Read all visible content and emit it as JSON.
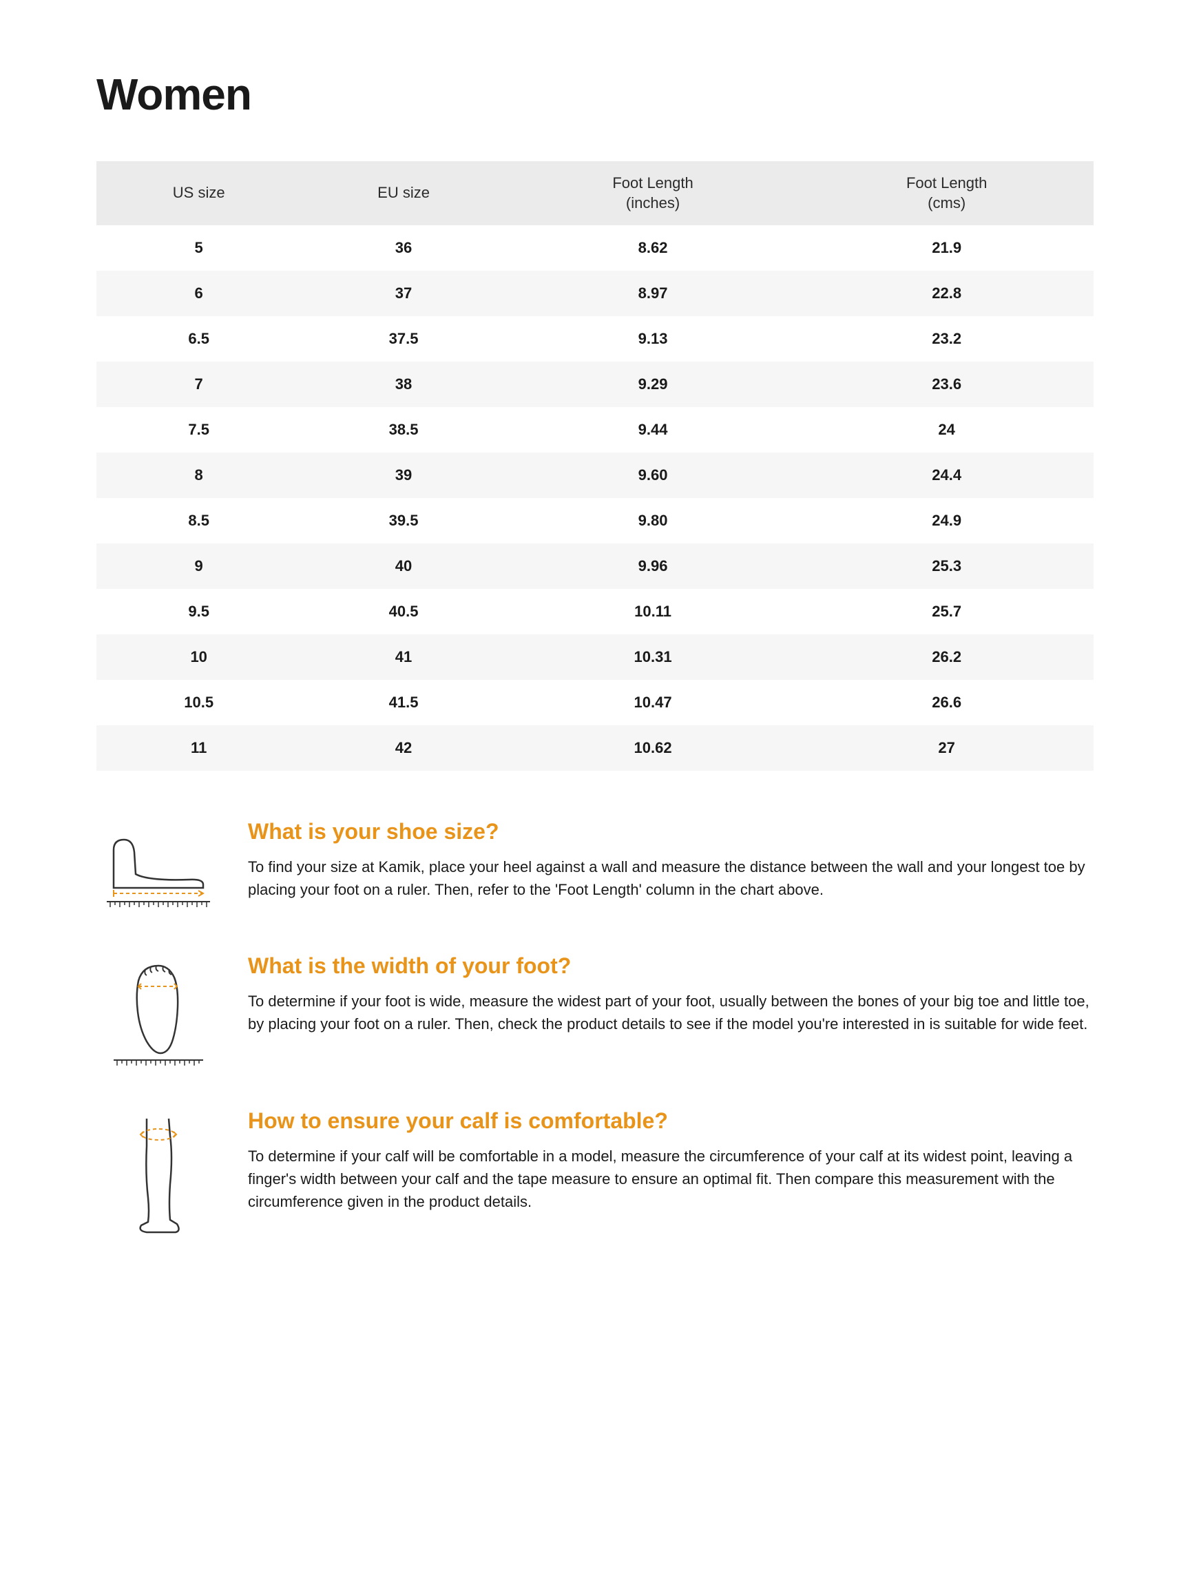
{
  "title": "Women",
  "table": {
    "columns": [
      "US size",
      "EU size",
      "Foot Length\n(inches)",
      "Foot Length\n(cms)"
    ],
    "rows": [
      [
        "5",
        "36",
        "8.62",
        "21.9"
      ],
      [
        "6",
        "37",
        "8.97",
        "22.8"
      ],
      [
        "6.5",
        "37.5",
        "9.13",
        "23.2"
      ],
      [
        "7",
        "38",
        "9.29",
        "23.6"
      ],
      [
        "7.5",
        "38.5",
        "9.44",
        "24"
      ],
      [
        "8",
        "39",
        "9.60",
        "24.4"
      ],
      [
        "8.5",
        "39.5",
        "9.80",
        "24.9"
      ],
      [
        "9",
        "40",
        "9.96",
        "25.3"
      ],
      [
        "9.5",
        "40.5",
        "10.11",
        "25.7"
      ],
      [
        "10",
        "41",
        "10.31",
        "26.2"
      ],
      [
        "10.5",
        "41.5",
        "10.47",
        "26.6"
      ],
      [
        "11",
        "42",
        "10.62",
        "27"
      ]
    ],
    "header_bg": "#ebebeb",
    "row_alt_bg": "#f6f6f6",
    "header_fontsize": 22,
    "cell_fontsize": 22
  },
  "sections": [
    {
      "heading": "What is your shoe size?",
      "body": "To find your size at Kamik, place your heel against a wall and measure the distance between the wall and your longest toe by placing your foot on a ruler. Then, refer to the 'Foot Length' column in the chart above."
    },
    {
      "heading": "What is the width of your foot?",
      "body": "To determine if your foot is wide, measure the widest part of your foot, usually between the bones of your big toe and little toe, by placing your foot on a ruler. Then, check the product details to see if the model you're interested in is suitable for wide feet."
    },
    {
      "heading": "How to ensure your calf is comfortable?",
      "body": "To determine if your calf will be comfortable in a model, measure the circumference of your calf at its widest point, leaving a finger's width between your calf and the tape measure to ensure an optimal fit. Then compare this measurement with the circumference given in the product details."
    }
  ],
  "colors": {
    "accent": "#e8941a",
    "text": "#1a1a1a",
    "background": "#ffffff"
  }
}
